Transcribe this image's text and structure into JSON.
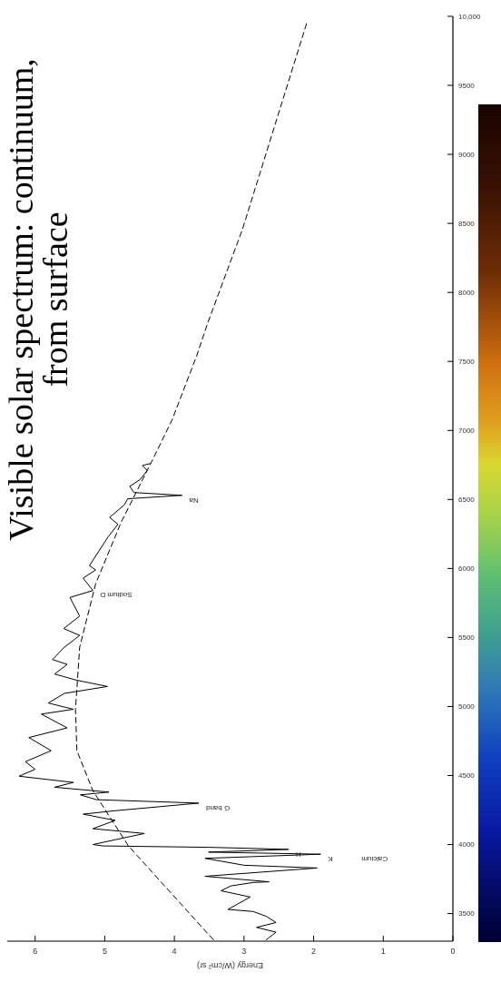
{
  "chart_data": {
    "type": "line",
    "title": "Visible solar spectrum: continuum,\nfrom surface",
    "xlabel": "Energy (W/cm² sr)",
    "ylim": [
      3300,
      10000
    ],
    "yticks": [
      3500,
      4000,
      4500,
      5000,
      5500,
      6000,
      6500,
      7000,
      7500,
      8000,
      8500,
      9000,
      9500,
      {
        "value": 10000,
        "label": "10,000"
      }
    ],
    "xlim": [
      6.4,
      0
    ],
    "xticks": [
      0,
      1,
      2,
      3,
      4,
      5,
      6
    ],
    "series": [
      {
        "color": "#000000",
        "line_style": "solid",
        "values": [
          3310,
          3365,
          3400,
          3435,
          3480,
          3515,
          3530,
          3620,
          3665,
          3700,
          3725,
          3730,
          3770,
          3830,
          3850,
          3900,
          3930,
          3945,
          3965,
          3980,
          3990,
          4000,
          4080,
          4115,
          4175,
          4220,
          4245,
          4300,
          4325,
          4360,
          4380,
          4415,
          4450,
          4495,
          4545,
          4600,
          4680,
          4775,
          4845,
          4945,
          4980,
          5025,
          5095,
          5145,
          5190,
          5235,
          5305,
          5340,
          5425,
          5515,
          5565,
          5655,
          5790,
          5840,
          5930,
          5990,
          6020,
          6160,
          6230,
          6320,
          6370,
          6460,
          6505,
          6530,
          6550,
          6595,
          6645,
          6710,
          6745,
          6760
        ],
        "x": [
          2.68,
          2.54,
          2.82,
          2.54,
          2.68,
          2.87,
          3.23,
          2.91,
          3.33,
          3.19,
          2.87,
          2.64,
          3.56,
          1.95,
          3.0,
          3.56,
          1.9,
          3.51,
          2.36,
          3.51,
          5.03,
          5.17,
          4.43,
          5.17,
          4.85,
          5.31,
          4.85,
          3.65,
          5.12,
          5.35,
          4.94,
          5.72,
          5.45,
          6.23,
          6.0,
          6.14,
          5.77,
          6.09,
          5.54,
          5.91,
          5.45,
          5.81,
          5.58,
          4.96,
          5.4,
          5.72,
          5.54,
          5.75,
          5.59,
          5.36,
          5.59,
          5.36,
          5.5,
          5.17,
          5.31,
          5.13,
          5.22,
          5.04,
          4.95,
          4.81,
          4.93,
          4.72,
          4.67,
          3.89,
          4.58,
          4.64,
          4.49,
          4.39,
          4.46,
          4.35
        ]
      },
      {
        "color": "#000000",
        "line_style": "dashed",
        "values": [
          3310,
          3990,
          4390,
          4680,
          4980,
          5430,
          5890,
          6340,
          6800,
          7080,
          7540,
          7780,
          8460,
          9060,
          9950
        ],
        "x": [
          3.44,
          4.66,
          5.17,
          5.4,
          5.42,
          5.36,
          5.13,
          4.76,
          4.3,
          4.03,
          3.68,
          3.52,
          3.02,
          2.65,
          2.1
        ]
      }
    ],
    "annotations": [
      {
        "text": "Sodium D",
        "x": 5.17,
        "y": 5840
      },
      {
        "text": "Na",
        "x": 3.89,
        "y": 6530
      },
      {
        "text": "G band",
        "x": 3.65,
        "y": 4300
      },
      {
        "text": "H",
        "x": 2.36,
        "y": 3965
      },
      {
        "text": "K",
        "x": 1.9,
        "y": 3930
      },
      "Calcium"
    ],
    "marker": "none",
    "grid": false
  }
}
